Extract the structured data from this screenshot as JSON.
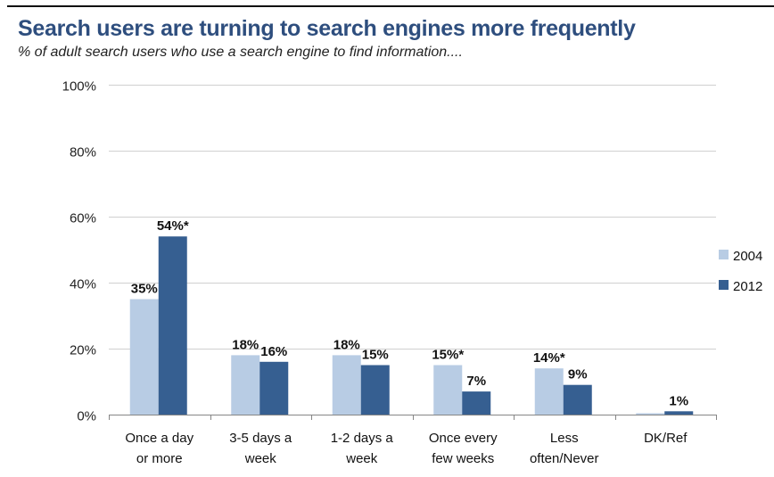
{
  "chart_data": {
    "type": "bar",
    "title": "Search users are turning to search engines more frequently",
    "subtitle": "% of adult search users who use a search engine to find information....",
    "categories": [
      [
        "Once a day",
        "or more"
      ],
      [
        "3-5 days a",
        "week"
      ],
      [
        "1-2 days a",
        "week"
      ],
      [
        "Once every",
        "few weeks"
      ],
      [
        "Less",
        "often/Never"
      ],
      [
        "DK/Ref"
      ]
    ],
    "series": [
      {
        "name": "2004",
        "color": "#b8cce4",
        "values": [
          35,
          18,
          18,
          15,
          14,
          0.4
        ],
        "labels": [
          "35%",
          "18%",
          "18%",
          "15%*",
          "14%*",
          ""
        ]
      },
      {
        "name": "2012",
        "color": "#365f91",
        "values": [
          54,
          16,
          15,
          7,
          9,
          1
        ],
        "labels": [
          "54%*",
          "16%",
          "15%",
          "7%",
          "9%",
          "1%"
        ]
      }
    ],
    "ylim": [
      0,
      100
    ],
    "yticks": [
      "0%",
      "20%",
      "40%",
      "60%",
      "80%",
      "100%"
    ],
    "grid": true,
    "legend": "right"
  }
}
